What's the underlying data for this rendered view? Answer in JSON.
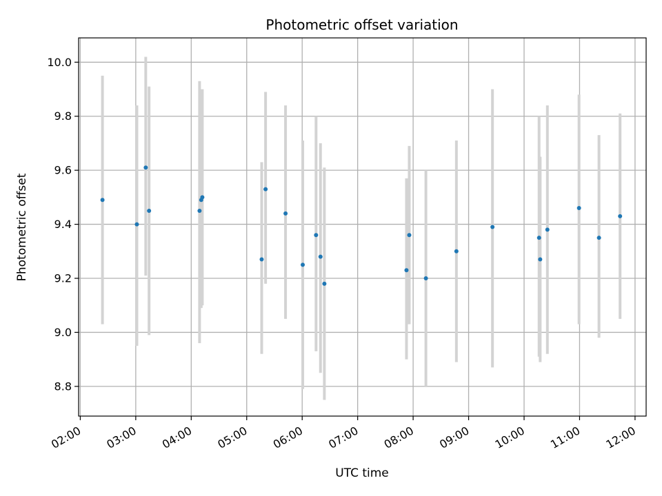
{
  "chart_data": {
    "type": "scatter",
    "title": "Photometric offset variation",
    "xlabel": "UTC time",
    "ylabel": "Photometric offset",
    "x_unit": "UTC time of day (hours)",
    "xlim": [
      1.97,
      12.2
    ],
    "ylim": [
      8.69,
      10.09
    ],
    "x_tick_values": [
      2,
      3,
      4,
      5,
      6,
      7,
      8,
      9,
      10,
      11,
      12
    ],
    "x_tick_labels": [
      "02:00",
      "03:00",
      "04:00",
      "05:00",
      "06:00",
      "07:00",
      "08:00",
      "09:00",
      "10:00",
      "11:00",
      "12:00"
    ],
    "y_tick_values": [
      8.8,
      9.0,
      9.2,
      9.4,
      9.6,
      9.8,
      10.0
    ],
    "y_tick_labels": [
      "8.8",
      "9.0",
      "9.2",
      "9.4",
      "9.6",
      "9.8",
      "10.0"
    ],
    "grid": true,
    "colors": {
      "point": "#1f77b4",
      "errorbar": "#d3d3d3",
      "grid": "#b0b0b0"
    },
    "series": [
      {
        "points": [
          {
            "x": 2.4,
            "y": 9.49,
            "lo": 9.03,
            "hi": 9.95
          },
          {
            "x": 3.02,
            "y": 9.4,
            "lo": 8.95,
            "hi": 9.84
          },
          {
            "x": 3.18,
            "y": 9.61,
            "lo": 9.21,
            "hi": 10.02
          },
          {
            "x": 3.24,
            "y": 9.45,
            "lo": 8.99,
            "hi": 9.91
          },
          {
            "x": 4.15,
            "y": 9.45,
            "lo": 8.96,
            "hi": 9.93
          },
          {
            "x": 4.18,
            "y": 9.49,
            "lo": 9.09,
            "hi": 9.9
          },
          {
            "x": 4.2,
            "y": 9.5,
            "lo": 9.1,
            "hi": 9.9
          },
          {
            "x": 5.27,
            "y": 9.27,
            "lo": 8.92,
            "hi": 9.63
          },
          {
            "x": 5.34,
            "y": 9.53,
            "lo": 9.18,
            "hi": 9.89
          },
          {
            "x": 5.7,
            "y": 9.44,
            "lo": 9.05,
            "hi": 9.84
          },
          {
            "x": 6.01,
            "y": 9.25,
            "lo": 8.79,
            "hi": 9.71
          },
          {
            "x": 6.25,
            "y": 9.36,
            "lo": 8.93,
            "hi": 9.8
          },
          {
            "x": 6.33,
            "y": 9.28,
            "lo": 8.85,
            "hi": 9.7
          },
          {
            "x": 6.4,
            "y": 9.18,
            "lo": 8.75,
            "hi": 9.61
          },
          {
            "x": 7.88,
            "y": 9.23,
            "lo": 8.9,
            "hi": 9.57
          },
          {
            "x": 7.93,
            "y": 9.36,
            "lo": 9.03,
            "hi": 9.69
          },
          {
            "x": 8.23,
            "y": 9.2,
            "lo": 8.8,
            "hi": 9.6
          },
          {
            "x": 8.78,
            "y": 9.3,
            "lo": 8.89,
            "hi": 9.71
          },
          {
            "x": 9.43,
            "y": 9.39,
            "lo": 8.87,
            "hi": 9.9
          },
          {
            "x": 10.27,
            "y": 9.35,
            "lo": 8.91,
            "hi": 9.8
          },
          {
            "x": 10.29,
            "y": 9.27,
            "lo": 8.89,
            "hi": 9.65
          },
          {
            "x": 10.42,
            "y": 9.38,
            "lo": 8.92,
            "hi": 9.84
          },
          {
            "x": 10.99,
            "y": 9.46,
            "lo": 9.03,
            "hi": 9.88
          },
          {
            "x": 11.35,
            "y": 9.35,
            "lo": 8.98,
            "hi": 9.73
          },
          {
            "x": 11.73,
            "y": 9.43,
            "lo": 9.05,
            "hi": 9.81
          }
        ]
      }
    ]
  }
}
